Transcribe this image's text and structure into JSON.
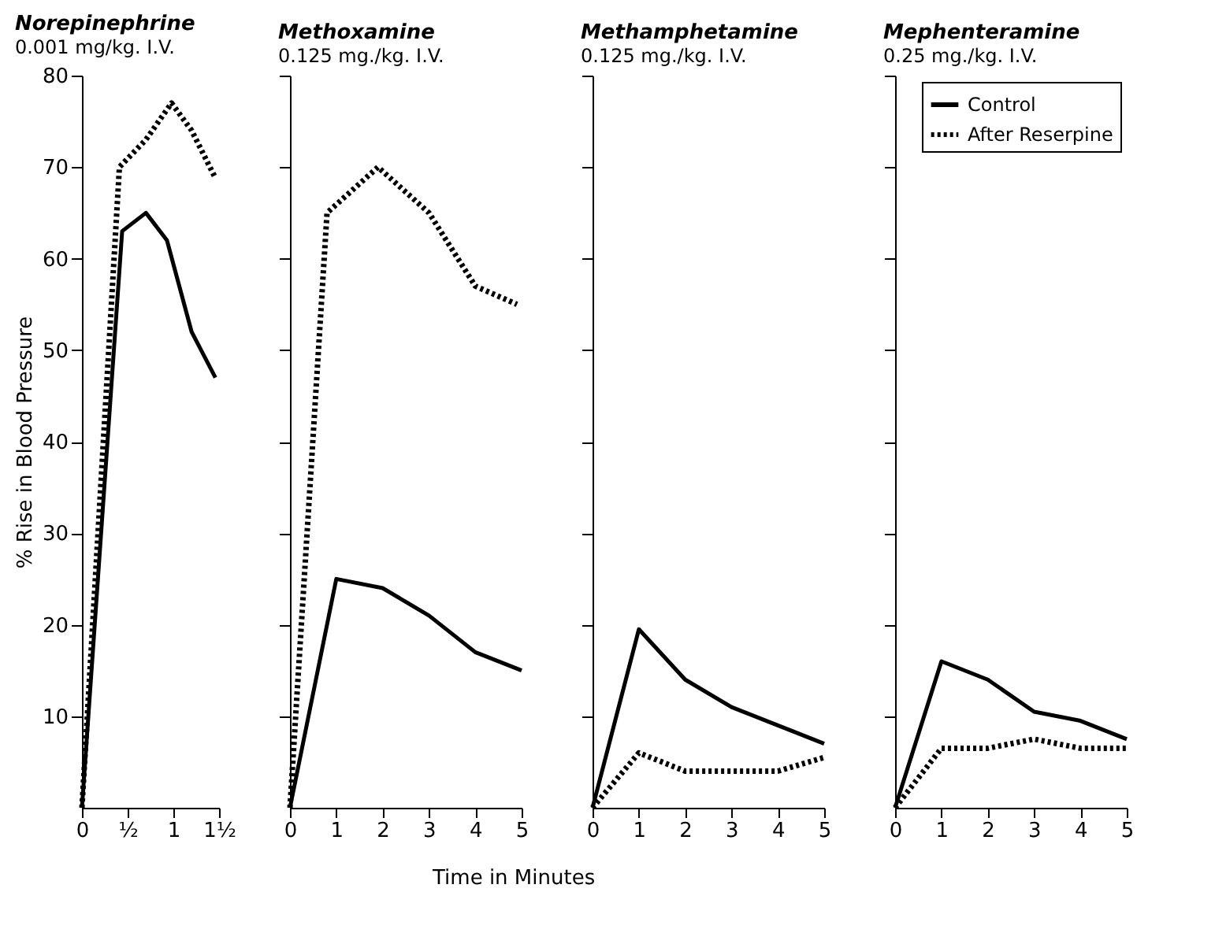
{
  "chart_data": [
    {
      "type": "line",
      "title": "Norepinephrine",
      "subtitle": "0.001 mg/kg. I.V.",
      "ylabel": "% Rise in Blood Pressure",
      "xlim": [
        0,
        1.5
      ],
      "xticks": [
        0,
        {
          "value": 0.5,
          "label": "½"
        },
        1,
        {
          "value": 1.5,
          "label": "1½"
        }
      ],
      "ylim": [
        0,
        80
      ],
      "yticks": [
        10,
        20,
        30,
        40,
        50,
        60,
        70,
        80
      ],
      "series": [
        {
          "color": "#000000",
          "line_style": "solid",
          "x": [
            0,
            0.44,
            0.7,
            0.93,
            1.2,
            1.46
          ],
          "values": [
            0,
            63,
            65,
            62,
            52,
            47
          ]
        },
        {
          "color": "#000000",
          "line_style": "dotted",
          "x": [
            0,
            0.41,
            0.7,
            0.98,
            1.2,
            1.45
          ],
          "values": [
            0,
            70,
            73,
            77,
            74,
            69
          ]
        }
      ]
    },
    {
      "type": "line",
      "title": "Methoxamine",
      "subtitle": "0.125 mg./kg. I.V.",
      "xlabel": "Time in Minutes",
      "xlim": [
        0,
        5
      ],
      "xticks": [
        0,
        1,
        2,
        3,
        4,
        5
      ],
      "ylim": [
        0,
        80
      ],
      "yticks": [
        10,
        20,
        30,
        40,
        50,
        60,
        70,
        80
      ],
      "tick_labels": "x",
      "series": [
        {
          "color": "#000000",
          "line_style": "solid",
          "x": [
            0,
            1,
            2,
            3,
            4,
            5
          ],
          "values": [
            0,
            25,
            24,
            21,
            17,
            15
          ]
        },
        {
          "color": "#000000",
          "line_style": "dotted",
          "x": [
            0,
            0.8,
            1.9,
            3,
            4,
            4.9
          ],
          "values": [
            0,
            65,
            70,
            65,
            57,
            55
          ]
        }
      ]
    },
    {
      "type": "line",
      "title": "Methamphetamine",
      "subtitle": "0.125 mg./kg. I.V.",
      "xlim": [
        0,
        5
      ],
      "xticks": [
        0,
        1,
        2,
        3,
        4,
        5
      ],
      "ylim": [
        0,
        80
      ],
      "yticks": [
        10,
        20,
        30,
        40,
        50,
        60,
        70,
        80
      ],
      "tick_labels": "x",
      "series": [
        {
          "color": "#000000",
          "line_style": "solid",
          "x": [
            0,
            1,
            2,
            3,
            4,
            5
          ],
          "values": [
            0,
            19.5,
            14,
            11,
            9,
            7
          ]
        },
        {
          "color": "#000000",
          "line_style": "dotted",
          "x": [
            0,
            1,
            2,
            3,
            4,
            5
          ],
          "values": [
            0,
            6,
            4,
            4,
            4,
            5.5
          ]
        }
      ]
    },
    {
      "type": "line",
      "title": "Mephenteramine",
      "subtitle": "0.25 mg./kg. I.V.",
      "xlim": [
        0,
        5
      ],
      "xticks": [
        0,
        1,
        2,
        3,
        4,
        5
      ],
      "ylim": [
        0,
        80
      ],
      "yticks": [
        10,
        20,
        30,
        40,
        50,
        60,
        70,
        80
      ],
      "tick_labels": "x",
      "legend": "top right",
      "series": [
        {
          "name": "Control",
          "color": "#000000",
          "line_style": "solid",
          "x": [
            0,
            1,
            2,
            3,
            4,
            5
          ],
          "values": [
            0,
            16,
            14,
            10.5,
            9.5,
            7.5
          ]
        },
        {
          "name": "After Reserpine",
          "color": "#000000",
          "line_style": "dotted",
          "x": [
            0,
            1,
            2,
            3,
            4,
            5
          ],
          "values": [
            0,
            6.5,
            6.5,
            7.5,
            6.5,
            6.5
          ]
        }
      ]
    }
  ]
}
